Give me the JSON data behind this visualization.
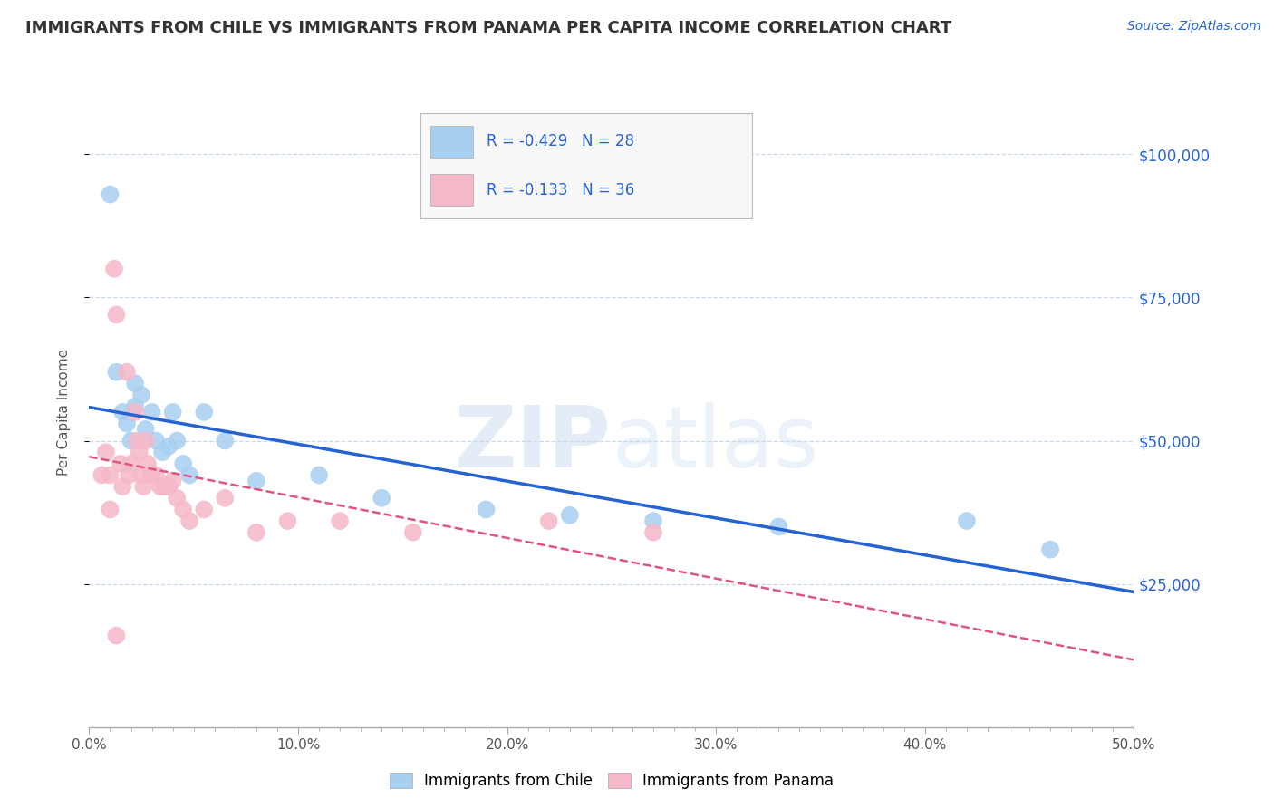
{
  "title": "IMMIGRANTS FROM CHILE VS IMMIGRANTS FROM PANAMA PER CAPITA INCOME CORRELATION CHART",
  "source": "Source: ZipAtlas.com",
  "ylabel": "Per Capita Income",
  "r_chile": -0.429,
  "n_chile": 28,
  "r_panama": -0.133,
  "n_panama": 36,
  "xlim": [
    0.0,
    0.5
  ],
  "ylim": [
    0,
    110000
  ],
  "ytick_vals": [
    25000,
    50000,
    75000,
    100000
  ],
  "ytick_labels": [
    "$25,000",
    "$50,000",
    "$75,000",
    "$100,000"
  ],
  "color_chile": "#a8cff0",
  "color_panama": "#f5b8c8",
  "trendline_chile": "#2563d4",
  "trendline_panama": "#e05580",
  "watermark_zip": "ZIP",
  "watermark_atlas": "atlas",
  "background_color": "#ffffff",
  "grid_color": "#c8d8ee",
  "chile_points_x": [
    0.01,
    0.013,
    0.016,
    0.018,
    0.02,
    0.022,
    0.022,
    0.025,
    0.027,
    0.03,
    0.032,
    0.035,
    0.038,
    0.04,
    0.042,
    0.045,
    0.048,
    0.055,
    0.065,
    0.08,
    0.11,
    0.14,
    0.19,
    0.23,
    0.27,
    0.33,
    0.42,
    0.46
  ],
  "chile_points_y": [
    93000,
    62000,
    55000,
    53000,
    50000,
    60000,
    56000,
    58000,
    52000,
    55000,
    50000,
    48000,
    49000,
    55000,
    50000,
    46000,
    44000,
    55000,
    50000,
    43000,
    44000,
    40000,
    38000,
    37000,
    36000,
    35000,
    36000,
    31000
  ],
  "panama_points_x": [
    0.006,
    0.008,
    0.01,
    0.012,
    0.013,
    0.015,
    0.016,
    0.018,
    0.019,
    0.02,
    0.022,
    0.023,
    0.024,
    0.025,
    0.026,
    0.027,
    0.028,
    0.03,
    0.032,
    0.034,
    0.036,
    0.038,
    0.04,
    0.042,
    0.045,
    0.048,
    0.055,
    0.065,
    0.08,
    0.095,
    0.12,
    0.155,
    0.22,
    0.27,
    0.01,
    0.013
  ],
  "panama_points_y": [
    44000,
    48000,
    44000,
    80000,
    72000,
    46000,
    42000,
    62000,
    44000,
    46000,
    55000,
    50000,
    48000,
    44000,
    42000,
    50000,
    46000,
    44000,
    44000,
    42000,
    42000,
    42000,
    43000,
    40000,
    38000,
    36000,
    38000,
    40000,
    34000,
    36000,
    36000,
    34000,
    36000,
    34000,
    38000,
    16000
  ]
}
